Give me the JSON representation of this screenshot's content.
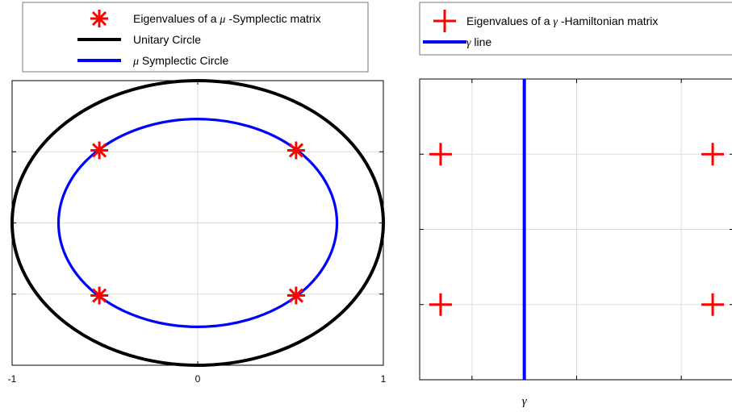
{
  "chart_data": [
    {
      "type": "scatter",
      "title": "",
      "xlabel": "",
      "ylabel": "",
      "xlim": [
        -1,
        1
      ],
      "ylim": [
        -1,
        1
      ],
      "grid": true,
      "legend_placement": "top",
      "xticks": [
        {
          "value": -1,
          "label": "-1"
        },
        {
          "value": 0,
          "label": "0"
        },
        {
          "value": 1,
          "label": "1"
        }
      ],
      "yticks": [
        -0.5,
        0,
        0.5
      ],
      "legend": [
        {
          "prefix": "Eigenvalues of a ",
          "symbol": "μ",
          "suffix": " -Symplectic matrix"
        },
        {
          "prefix": "Unitary Circle",
          "symbol": "",
          "suffix": ""
        },
        {
          "prefix": "",
          "symbol": "μ",
          "suffix": " Symplectic Circle"
        }
      ],
      "series": [
        {
          "marker": "asterisk",
          "color": "#ff0000",
          "points": [
            [
              -0.53,
              0.51
            ],
            [
              0.53,
              0.51
            ],
            [
              -0.53,
              -0.51
            ],
            [
              0.53,
              -0.51
            ]
          ]
        },
        {
          "kind": "ellipse",
          "color": "#000000",
          "center": [
            0,
            0
          ],
          "radius_x": 1,
          "radius_y": 1
        },
        {
          "kind": "ellipse",
          "color": "#0000ff",
          "center": [
            0,
            0
          ],
          "radius_x": 0.75,
          "radius_y": 0.73
        }
      ]
    },
    {
      "type": "scatter",
      "title": "",
      "xlabel": "γ",
      "ylabel": "",
      "xlim": [
        -1.5,
        1.5
      ],
      "ylim": [
        -1,
        1
      ],
      "grid": true,
      "legend_placement": "top",
      "xticks": [
        -1,
        0,
        1
      ],
      "yticks": [
        -0.5,
        0,
        0.5
      ],
      "legend": [
        {
          "prefix": "Eigenvalues of a ",
          "symbol": "γ",
          "suffix": " -Hamiltonian matrix"
        },
        {
          "prefix": "",
          "symbol": "γ",
          "suffix": " line"
        }
      ],
      "series": [
        {
          "marker": "plus",
          "color": "#ff0000",
          "points": [
            [
              -1.3,
              0.5
            ],
            [
              1.3,
              0.5
            ],
            [
              -1.3,
              -0.5
            ],
            [
              1.3,
              -0.5
            ]
          ]
        },
        {
          "kind": "vertical-line",
          "color": "#0000ff",
          "x": -0.5
        }
      ]
    }
  ]
}
